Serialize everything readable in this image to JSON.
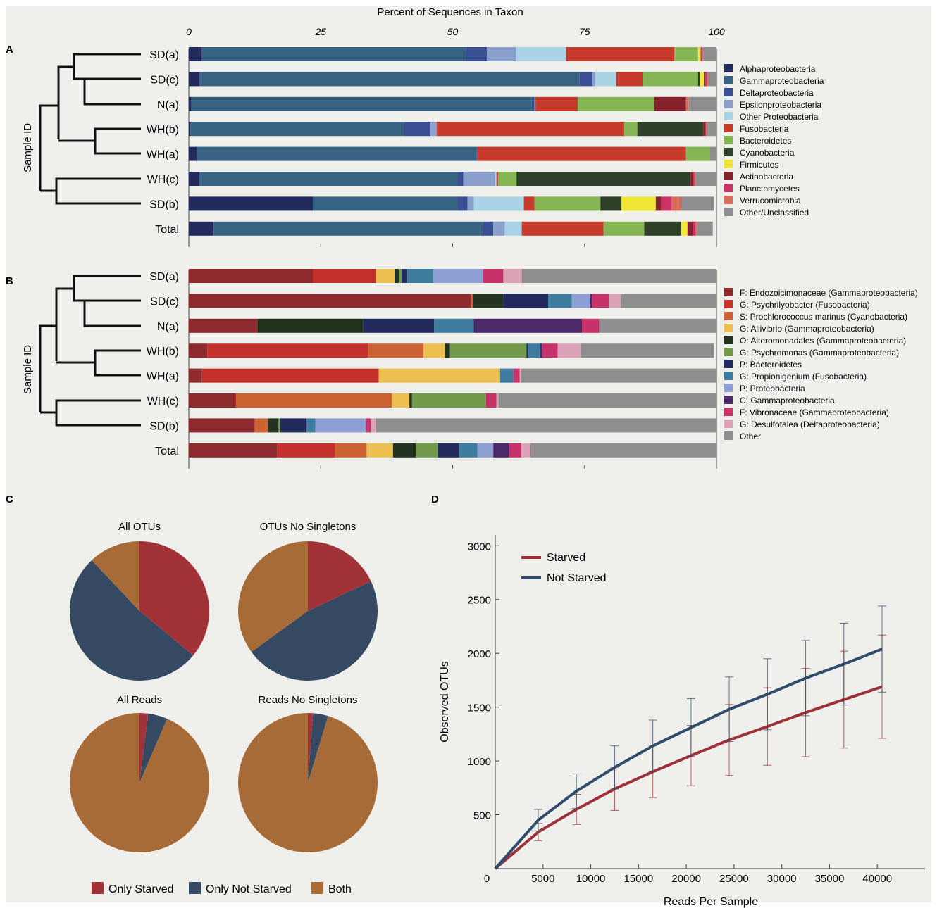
{
  "panel_labels": {
    "a": "A",
    "b": "B",
    "c": "C",
    "d": "D"
  },
  "chart_data": [
    {
      "type": "bar",
      "stacked": true,
      "orientation": "horizontal",
      "panel": "A",
      "title": "Percent of Sequences in Taxon",
      "ylabel": "Sample ID",
      "xlim": [
        0,
        100
      ],
      "x_ticks": [
        "0",
        "25",
        "50",
        "75",
        "100"
      ],
      "legend_position": "right",
      "categories": [
        "SD(a)",
        "SD(c)",
        "N(a)",
        "WH(b)",
        "WH(a)",
        "WH(c)",
        "SD(b)",
        "Total"
      ],
      "series": [
        {
          "name": "Alphaproteobacteria",
          "color": "#232a5e",
          "values": [
            2.5,
            2,
            0.5,
            0.3,
            1.5,
            2,
            23.5,
            4.7
          ]
        },
        {
          "name": "Gammaproteobacteria",
          "color": "#386282",
          "values": [
            50,
            72,
            64.5,
            40.5,
            53,
            49,
            27.5,
            51
          ]
        },
        {
          "name": "Deltaproteobacteria",
          "color": "#3b4f94",
          "values": [
            4,
            2.5,
            0.5,
            5,
            0.2,
            1,
            1.8,
            2
          ]
        },
        {
          "name": "Epsilonproteobacteria",
          "color": "#8a9fcc",
          "values": [
            5.5,
            0.5,
            0.2,
            1.2,
            0,
            6,
            1.2,
            2.2
          ]
        },
        {
          "name": "Other Proteobacteria",
          "color": "#a8d4e6",
          "values": [
            9.5,
            4,
            0,
            0,
            0,
            0.3,
            9.5,
            3.2
          ]
        },
        {
          "name": "Fusobacteria",
          "color": "#c63b2c",
          "values": [
            20.5,
            5,
            8,
            35.5,
            39.5,
            0.3,
            2,
            15.5
          ]
        },
        {
          "name": "Bacteroidetes",
          "color": "#86b553",
          "values": [
            4.5,
            10.5,
            14.5,
            2.5,
            4.5,
            3.5,
            12.5,
            7.7
          ]
        },
        {
          "name": "Cyanobacteria",
          "color": "#2e4128",
          "values": [
            0,
            0.3,
            0,
            12.5,
            0,
            33,
            4,
            7
          ]
        },
        {
          "name": "Firmicutes",
          "color": "#f0e637",
          "values": [
            0.5,
            0.8,
            0,
            0,
            0,
            0,
            6.5,
            1.2
          ]
        },
        {
          "name": "Actinobacteria",
          "color": "#86222c",
          "values": [
            0,
            0.3,
            6,
            0.3,
            0,
            0.4,
            1,
            1
          ]
        },
        {
          "name": "Planctomycetes",
          "color": "#cc3468",
          "values": [
            0.3,
            0.3,
            0,
            0.2,
            0,
            0.3,
            2,
            0.5
          ]
        },
        {
          "name": "Verrucomicrobia",
          "color": "#d66e5a",
          "values": [
            0.2,
            0.3,
            0.5,
            0.2,
            0,
            0.2,
            1.8,
            0.3
          ]
        },
        {
          "name": "Other/Unclassified",
          "color": "#8e8e8e",
          "values": [
            2.5,
            2.5,
            5.3,
            1.8,
            1.3,
            4,
            6.2,
            3
          ]
        }
      ]
    },
    {
      "type": "bar",
      "stacked": true,
      "orientation": "horizontal",
      "panel": "B",
      "ylabel": "Sample ID",
      "xlim": [
        0,
        100
      ],
      "legend_position": "right",
      "categories": [
        "SD(a)",
        "SD(c)",
        "N(a)",
        "WH(b)",
        "WH(a)",
        "WH(c)",
        "SD(b)",
        "Total"
      ],
      "series": [
        {
          "name": "F: Endozoicimonaceae (Gammaproteobacteria)",
          "color": "#8c2a2e",
          "values": [
            23.5,
            53.5,
            13,
            3.5,
            2.5,
            8.8,
            12.5,
            16.7
          ]
        },
        {
          "name": "G: Psychrilyobacter (Fusobacteria)",
          "color": "#c4302c",
          "values": [
            12,
            0,
            0,
            30.5,
            33.5,
            0.2,
            0,
            11
          ]
        },
        {
          "name": "S: Prochlorococcus marinus (Cyanobacteria)",
          "color": "#cc6232",
          "values": [
            0,
            0.3,
            0,
            10.5,
            0,
            29.5,
            2.5,
            6
          ]
        },
        {
          "name": "G: Aliivibrio (Gammaproteobacteria)",
          "color": "#ecc050",
          "values": [
            3.5,
            0,
            0,
            4,
            23,
            3.3,
            0,
            5
          ]
        },
        {
          "name": "O: Alteromonadales (Gammaproteobacteria)",
          "color": "#23331f",
          "values": [
            0.8,
            5.8,
            20,
            1,
            0,
            0.5,
            2,
            4.3
          ]
        },
        {
          "name": "G: Psychromonas (Gammaproteobacteria)",
          "color": "#719b4b",
          "values": [
            0.5,
            0,
            0,
            14.5,
            0,
            14,
            0.3,
            4.2
          ]
        },
        {
          "name": "P: Bacteroidetes",
          "color": "#232a5e",
          "values": [
            1,
            8.5,
            13.5,
            0.3,
            0,
            0,
            5,
            4
          ]
        },
        {
          "name": "G: Propionigenium (Fusobacteria)",
          "color": "#3d7c9e",
          "values": [
            5,
            4.5,
            7.5,
            2.3,
            2.5,
            0,
            1.7,
            3.5
          ]
        },
        {
          "name": "P: Proteobacteria",
          "color": "#8c9ed4",
          "values": [
            9.5,
            3.5,
            0,
            0,
            0,
            0,
            9.5,
            3
          ]
        },
        {
          "name": "C: Gammaproteobacteria",
          "color": "#4c2a6a",
          "values": [
            0,
            0.3,
            20.5,
            0.3,
            0,
            0,
            0,
            3
          ]
        },
        {
          "name": "F: Vibronaceae (Gammaproteobacteria)",
          "color": "#c8326a",
          "values": [
            3.8,
            3.2,
            3.3,
            3,
            1.2,
            2,
            1,
            2.3
          ]
        },
        {
          "name": "G: Desulfotalea (Deltaproteobacteria)",
          "color": "#dca2b8",
          "values": [
            3.5,
            2.2,
            0,
            4.4,
            0.3,
            0.4,
            1,
            1.7
          ]
        },
        {
          "name": "Other",
          "color": "#8e8e8e",
          "values": [
            36.9,
            18.2,
            22.2,
            25.2,
            37,
            41.3,
            64.5,
            35.3
          ]
        }
      ]
    },
    {
      "type": "pie",
      "panel": "C",
      "legend_position": "bottom",
      "legend": [
        {
          "name": "Only Starved",
          "color": "#a13338"
        },
        {
          "name": "Only Not Starved",
          "color": "#354a62"
        },
        {
          "name": "Both",
          "color": "#a66b37"
        }
      ],
      "pies": [
        {
          "title": "All OTUs",
          "values": [
            36,
            52,
            12
          ]
        },
        {
          "title": "OTUs No Singletons",
          "values": [
            18,
            47,
            35
          ]
        },
        {
          "title": "All Reads",
          "values": [
            2,
            4.5,
            93.5
          ]
        },
        {
          "title": "Reads No Singletons",
          "values": [
            1.2,
            3.5,
            95.3
          ]
        }
      ]
    },
    {
      "type": "line",
      "panel": "D",
      "xlabel": "Reads Per Sample",
      "ylabel": "Observed OTUs",
      "xlim": [
        0,
        45000
      ],
      "ylim": [
        0,
        3100
      ],
      "x_ticks": [
        "0",
        "5000",
        "10000",
        "15000",
        "20000",
        "25000",
        "30000",
        "35000",
        "40000"
      ],
      "y_ticks": [
        "500",
        "1000",
        "1500",
        "2000",
        "2500",
        "3000"
      ],
      "legend_position": "top-left",
      "x": [
        0,
        4000,
        8000,
        12000,
        16000,
        20000,
        24000,
        28000,
        32000,
        36000,
        40000
      ],
      "series": [
        {
          "name": "Starved",
          "color": "#9e3138",
          "values": [
            0,
            340,
            550,
            740,
            900,
            1050,
            1195,
            1320,
            1450,
            1570,
            1690
          ],
          "error": [
            0,
            80,
            140,
            200,
            240,
            280,
            330,
            360,
            410,
            450,
            480
          ]
        },
        {
          "name": "Not Starved",
          "color": "#314c6b",
          "values": [
            0,
            450,
            720,
            940,
            1140,
            1310,
            1480,
            1620,
            1770,
            1900,
            2040
          ],
          "error": [
            0,
            100,
            160,
            200,
            240,
            270,
            300,
            330,
            350,
            380,
            400
          ]
        }
      ]
    }
  ]
}
